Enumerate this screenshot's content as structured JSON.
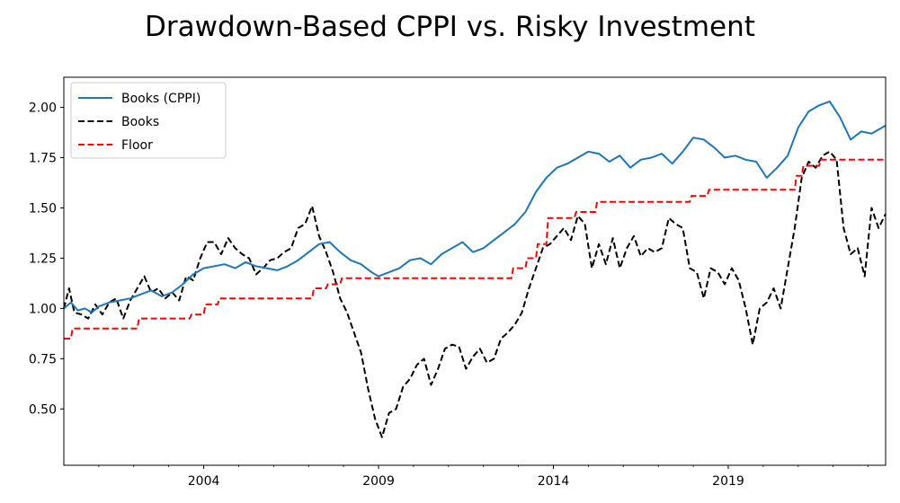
{
  "chart_data": {
    "type": "line",
    "title": "Drawdown-Based CPPI vs. Risky Investment",
    "xlabel": "",
    "ylabel": "",
    "xlim": [
      2000.0,
      2023.5
    ],
    "ylim": [
      0.22,
      2.15
    ],
    "x_ticks": [
      {
        "value": 2004,
        "label": "2004"
      },
      {
        "value": 2009,
        "label": "2009"
      },
      {
        "value": 2014,
        "label": "2014"
      },
      {
        "value": 2019,
        "label": "2019"
      }
    ],
    "y_ticks": [
      {
        "value": 0.5,
        "label": "0.50"
      },
      {
        "value": 0.75,
        "label": "0.75"
      },
      {
        "value": 1.0,
        "label": "1.00"
      },
      {
        "value": 1.25,
        "label": "1.25"
      },
      {
        "value": 1.5,
        "label": "1.50"
      },
      {
        "value": 1.75,
        "label": "1.75"
      },
      {
        "value": 2.0,
        "label": "2.00"
      }
    ],
    "grid": false,
    "legend_position": "upper-left",
    "series": [
      {
        "name": "Books (CPPI)",
        "color": "#1f77b4",
        "style": "solid",
        "x": [
          2000.0,
          2000.2,
          2000.4,
          2000.6,
          2000.8,
          2001.0,
          2001.3,
          2001.6,
          2001.9,
          2002.2,
          2002.5,
          2002.8,
          2003.1,
          2003.4,
          2003.7,
          2004.0,
          2004.3,
          2004.6,
          2004.9,
          2005.2,
          2005.5,
          2005.8,
          2006.1,
          2006.4,
          2006.7,
          2007.0,
          2007.3,
          2007.6,
          2007.9,
          2008.2,
          2008.5,
          2008.8,
          2009.0,
          2009.3,
          2009.6,
          2009.9,
          2010.2,
          2010.5,
          2010.8,
          2011.1,
          2011.4,
          2011.7,
          2012.0,
          2012.3,
          2012.6,
          2012.9,
          2013.2,
          2013.5,
          2013.8,
          2014.1,
          2014.4,
          2014.7,
          2015.0,
          2015.3,
          2015.6,
          2015.9,
          2016.2,
          2016.5,
          2016.8,
          2017.1,
          2017.4,
          2017.7,
          2018.0,
          2018.3,
          2018.6,
          2018.9,
          2019.2,
          2019.5,
          2019.8,
          2020.1,
          2020.4,
          2020.7,
          2021.0,
          2021.3,
          2021.6,
          2021.9,
          2022.2,
          2022.5,
          2022.8,
          2023.1,
          2023.5
        ],
        "y": [
          1.0,
          1.03,
          0.99,
          1.0,
          0.98,
          1.01,
          1.03,
          1.04,
          1.05,
          1.07,
          1.09,
          1.06,
          1.08,
          1.12,
          1.17,
          1.2,
          1.21,
          1.22,
          1.2,
          1.23,
          1.21,
          1.2,
          1.19,
          1.21,
          1.24,
          1.28,
          1.32,
          1.33,
          1.28,
          1.24,
          1.22,
          1.18,
          1.16,
          1.18,
          1.2,
          1.24,
          1.25,
          1.22,
          1.27,
          1.3,
          1.33,
          1.28,
          1.3,
          1.34,
          1.38,
          1.42,
          1.48,
          1.58,
          1.65,
          1.7,
          1.72,
          1.75,
          1.78,
          1.77,
          1.73,
          1.76,
          1.7,
          1.74,
          1.75,
          1.77,
          1.72,
          1.78,
          1.85,
          1.84,
          1.8,
          1.75,
          1.76,
          1.74,
          1.73,
          1.65,
          1.7,
          1.76,
          1.9,
          1.98,
          2.01,
          2.03,
          1.95,
          1.84,
          1.88,
          1.87,
          1.91
        ]
      },
      {
        "name": "Books",
        "color": "#000000",
        "style": "dashed",
        "x": [
          2000.0,
          2000.15,
          2000.3,
          2000.5,
          2000.7,
          2000.9,
          2001.1,
          2001.3,
          2001.5,
          2001.7,
          2001.9,
          2002.1,
          2002.3,
          2002.5,
          2002.7,
          2002.9,
          2003.1,
          2003.3,
          2003.5,
          2003.7,
          2003.9,
          2004.1,
          2004.3,
          2004.5,
          2004.7,
          2004.9,
          2005.1,
          2005.3,
          2005.5,
          2005.7,
          2005.9,
          2006.1,
          2006.3,
          2006.5,
          2006.7,
          2006.9,
          2007.1,
          2007.3,
          2007.5,
          2007.7,
          2007.9,
          2008.1,
          2008.3,
          2008.5,
          2008.7,
          2008.9,
          2009.1,
          2009.3,
          2009.5,
          2009.7,
          2009.9,
          2010.1,
          2010.3,
          2010.5,
          2010.7,
          2010.9,
          2011.1,
          2011.3,
          2011.5,
          2011.7,
          2011.9,
          2012.1,
          2012.3,
          2012.5,
          2012.7,
          2012.9,
          2013.1,
          2013.3,
          2013.5,
          2013.7,
          2013.9,
          2014.1,
          2014.3,
          2014.5,
          2014.7,
          2014.9,
          2015.1,
          2015.3,
          2015.5,
          2015.7,
          2015.9,
          2016.1,
          2016.3,
          2016.5,
          2016.7,
          2016.9,
          2017.1,
          2017.3,
          2017.5,
          2017.7,
          2017.9,
          2018.1,
          2018.3,
          2018.5,
          2018.7,
          2018.9,
          2019.1,
          2019.3,
          2019.5,
          2019.7,
          2019.9,
          2020.1,
          2020.3,
          2020.5,
          2020.7,
          2020.9,
          2021.1,
          2021.3,
          2021.5,
          2021.7,
          2021.9,
          2022.1,
          2022.3,
          2022.5,
          2022.7,
          2022.9,
          2023.1,
          2023.3,
          2023.5
        ],
        "y": [
          1.0,
          1.1,
          0.98,
          0.97,
          0.95,
          1.02,
          0.97,
          1.03,
          1.05,
          0.95,
          1.04,
          1.1,
          1.16,
          1.08,
          1.1,
          1.05,
          1.08,
          1.04,
          1.16,
          1.14,
          1.25,
          1.33,
          1.33,
          1.27,
          1.35,
          1.3,
          1.27,
          1.25,
          1.17,
          1.2,
          1.24,
          1.25,
          1.28,
          1.3,
          1.4,
          1.42,
          1.51,
          1.36,
          1.28,
          1.18,
          1.05,
          0.98,
          0.88,
          0.78,
          0.6,
          0.45,
          0.36,
          0.48,
          0.5,
          0.61,
          0.65,
          0.72,
          0.75,
          0.62,
          0.7,
          0.8,
          0.82,
          0.81,
          0.7,
          0.76,
          0.8,
          0.73,
          0.75,
          0.85,
          0.88,
          0.92,
          0.98,
          1.1,
          1.2,
          1.3,
          1.32,
          1.36,
          1.4,
          1.34,
          1.46,
          1.42,
          1.2,
          1.32,
          1.22,
          1.35,
          1.2,
          1.3,
          1.36,
          1.26,
          1.3,
          1.28,
          1.3,
          1.45,
          1.42,
          1.4,
          1.2,
          1.18,
          1.05,
          1.2,
          1.18,
          1.12,
          1.2,
          1.14,
          1.0,
          0.82,
          1.0,
          1.03,
          1.1,
          1.0,
          1.2,
          1.4,
          1.65,
          1.73,
          1.7,
          1.76,
          1.78,
          1.74,
          1.4,
          1.27,
          1.3,
          1.16,
          1.5,
          1.4,
          1.47
        ]
      },
      {
        "name": "Floor",
        "color": "#ff0000",
        "style": "dashed",
        "x": [
          2000.0,
          2000.2,
          2000.25,
          2002.1,
          2002.15,
          2003.6,
          2003.65,
          2004.0,
          2004.05,
          2004.4,
          2004.45,
          2007.1,
          2007.15,
          2007.5,
          2007.55,
          2007.9,
          2007.95,
          2012.8,
          2012.85,
          2013.2,
          2013.25,
          2013.5,
          2013.55,
          2013.8,
          2013.85,
          2014.6,
          2014.65,
          2015.2,
          2015.25,
          2017.9,
          2017.95,
          2018.4,
          2018.45,
          2020.9,
          2020.95,
          2021.1,
          2021.15,
          2021.6,
          2021.65,
          2022.1,
          2022.15,
          2023.5
        ],
        "y": [
          0.85,
          0.85,
          0.9,
          0.9,
          0.95,
          0.95,
          0.97,
          0.97,
          1.02,
          1.02,
          1.05,
          1.05,
          1.1,
          1.1,
          1.12,
          1.12,
          1.15,
          1.15,
          1.2,
          1.2,
          1.25,
          1.25,
          1.32,
          1.32,
          1.45,
          1.45,
          1.48,
          1.48,
          1.53,
          1.53,
          1.56,
          1.56,
          1.59,
          1.59,
          1.66,
          1.66,
          1.71,
          1.71,
          1.74,
          1.74,
          1.74,
          1.74
        ]
      }
    ]
  }
}
